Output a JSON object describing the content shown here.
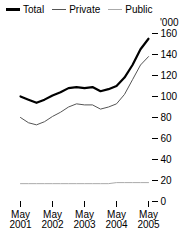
{
  "chart_data": {
    "type": "line",
    "categories": [
      "May\n2001",
      null,
      null,
      null,
      "May\n2002",
      null,
      null,
      null,
      "May\n2003",
      null,
      null,
      null,
      "May\n2004",
      null,
      null,
      null,
      "May\n2005"
    ],
    "series": [
      {
        "name": "Total",
        "color": "#000000",
        "values": [
          100,
          97,
          94,
          97,
          101,
          104,
          108,
          109,
          108,
          109,
          105,
          107,
          110,
          118,
          130,
          145,
          155
        ]
      },
      {
        "name": "Private",
        "color": "#555555",
        "values": [
          80,
          75,
          73,
          76,
          81,
          85,
          90,
          93,
          92,
          92,
          88,
          90,
          93,
          102,
          116,
          130,
          138
        ]
      },
      {
        "name": "Public",
        "color": "#aaaaaa",
        "values": [
          17,
          17,
          17,
          17,
          17,
          17,
          17,
          17,
          17,
          17,
          17,
          17,
          18,
          18,
          18,
          18,
          18
        ]
      }
    ],
    "ylabel": "'000",
    "ylim": [
      0,
      160
    ],
    "yticks": [
      0,
      20,
      40,
      60,
      80,
      100,
      120,
      140,
      160
    ],
    "grid": false,
    "legend": "upper left"
  }
}
